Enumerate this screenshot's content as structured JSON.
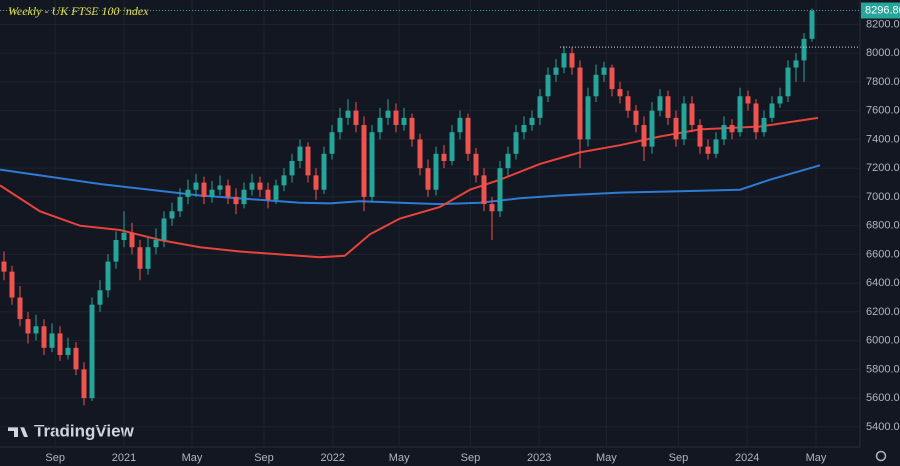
{
  "chart_data": {
    "type": "candlestick",
    "title": "Weekly - UK FTSE 100 index",
    "watermark": "TradingView",
    "up_color": "#26a69a",
    "down_color": "#ef5350",
    "grid": true,
    "ylim": [
      5260,
      8370
    ],
    "yticks": [
      {
        "value": 5400,
        "label": "5400.00"
      },
      {
        "value": 5600,
        "label": "5600.00"
      },
      {
        "value": 5800,
        "label": "5800.00"
      },
      {
        "value": 6000,
        "label": "6000.00"
      },
      {
        "value": 6200,
        "label": "6200.00"
      },
      {
        "value": 6400,
        "label": "6400.00"
      },
      {
        "value": 6600,
        "label": "6600.00"
      },
      {
        "value": 6800,
        "label": "6800.00"
      },
      {
        "value": 7000,
        "label": "7000.00"
      },
      {
        "value": 7200,
        "label": "7200.00"
      },
      {
        "value": 7400,
        "label": "7400.00"
      },
      {
        "value": 7600,
        "label": "7600.00"
      },
      {
        "value": 7800,
        "label": "7800.00"
      },
      {
        "value": 8000,
        "label": "8000.00"
      },
      {
        "value": 8200,
        "label": "8200.00"
      }
    ],
    "xlim": [
      0,
      107.5
    ],
    "xticks": [
      {
        "value": 6.9,
        "label": "Sep"
      },
      {
        "value": 15.5,
        "label": "2021"
      },
      {
        "value": 24,
        "label": "May"
      },
      {
        "value": 33,
        "label": "Sep"
      },
      {
        "value": 41.6,
        "label": "2022"
      },
      {
        "value": 49.9,
        "label": "May"
      },
      {
        "value": 58.8,
        "label": "Sep"
      },
      {
        "value": 67.4,
        "label": "2023"
      },
      {
        "value": 75.8,
        "label": "May"
      },
      {
        "value": 84.8,
        "label": "Sep"
      },
      {
        "value": 93.4,
        "label": "2024"
      },
      {
        "value": 102,
        "label": "May"
      }
    ],
    "last_price": {
      "value": 8296.8,
      "label": "8296.80"
    },
    "resistance": 8042,
    "candles": [
      [
        6550,
        6620,
        6420,
        6480
      ],
      [
        6480,
        6520,
        6250,
        6300
      ],
      [
        6300,
        6380,
        6100,
        6150
      ],
      [
        6150,
        6200,
        5980,
        6050
      ],
      [
        6050,
        6180,
        6000,
        6100
      ],
      [
        6100,
        6150,
        5900,
        5950
      ],
      [
        5950,
        6120,
        5920,
        6050
      ],
      [
        6050,
        6100,
        5860,
        5900
      ],
      [
        5900,
        6020,
        5870,
        5950
      ],
      [
        5950,
        5990,
        5760,
        5800
      ],
      [
        5800,
        5850,
        5550,
        5600
      ],
      [
        5600,
        6300,
        5580,
        6250
      ],
      [
        6250,
        6420,
        6200,
        6350
      ],
      [
        6350,
        6600,
        6300,
        6550
      ],
      [
        6550,
        6760,
        6500,
        6700
      ],
      [
        6700,
        6900,
        6650,
        6750
      ],
      [
        6750,
        6820,
        6600,
        6650
      ],
      [
        6650,
        6700,
        6420,
        6500
      ],
      [
        6500,
        6720,
        6460,
        6650
      ],
      [
        6650,
        6780,
        6600,
        6700
      ],
      [
        6700,
        6900,
        6650,
        6850
      ],
      [
        6850,
        6960,
        6800,
        6900
      ],
      [
        6900,
        7060,
        6860,
        7000
      ],
      [
        7000,
        7120,
        6950,
        7050
      ],
      [
        7050,
        7160,
        7000,
        7100
      ],
      [
        7100,
        7140,
        6950,
        7000
      ],
      [
        7000,
        7110,
        6960,
        7050
      ],
      [
        7050,
        7150,
        7010,
        7080
      ],
      [
        7080,
        7120,
        6950,
        7000
      ],
      [
        7000,
        7060,
        6880,
        6950
      ],
      [
        6950,
        7100,
        6920,
        7050
      ],
      [
        7050,
        7160,
        7010,
        7100
      ],
      [
        7100,
        7140,
        7000,
        7050
      ],
      [
        7050,
        7100,
        6920,
        6980
      ],
      [
        6980,
        7120,
        6950,
        7080
      ],
      [
        7080,
        7200,
        7040,
        7150
      ],
      [
        7150,
        7300,
        7100,
        7250
      ],
      [
        7250,
        7400,
        7200,
        7350
      ],
      [
        7350,
        7380,
        7100,
        7150
      ],
      [
        7150,
        7200,
        6980,
        7050
      ],
      [
        7050,
        7350,
        7020,
        7300
      ],
      [
        7300,
        7500,
        7260,
        7450
      ],
      [
        7450,
        7620,
        7400,
        7550
      ],
      [
        7550,
        7680,
        7500,
        7600
      ],
      [
        7600,
        7660,
        7450,
        7500
      ],
      [
        7500,
        7560,
        6900,
        7000
      ],
      [
        7000,
        7500,
        6960,
        7450
      ],
      [
        7450,
        7620,
        7400,
        7550
      ],
      [
        7550,
        7680,
        7500,
        7600
      ],
      [
        7600,
        7650,
        7450,
        7500
      ],
      [
        7500,
        7620,
        7460,
        7550
      ],
      [
        7550,
        7580,
        7350,
        7400
      ],
      [
        7400,
        7440,
        7150,
        7200
      ],
      [
        7200,
        7260,
        7000,
        7050
      ],
      [
        7050,
        7350,
        7010,
        7300
      ],
      [
        7300,
        7360,
        7200,
        7250
      ],
      [
        7250,
        7500,
        7220,
        7450
      ],
      [
        7450,
        7600,
        7400,
        7550
      ],
      [
        7550,
        7580,
        7250,
        7300
      ],
      [
        7300,
        7340,
        7100,
        7150
      ],
      [
        7150,
        7200,
        6900,
        6950
      ],
      [
        6950,
        7000,
        6700,
        6900
      ],
      [
        6900,
        7250,
        6860,
        7200
      ],
      [
        7200,
        7350,
        7150,
        7300
      ],
      [
        7300,
        7500,
        7260,
        7450
      ],
      [
        7450,
        7560,
        7400,
        7500
      ],
      [
        7500,
        7600,
        7460,
        7550
      ],
      [
        7550,
        7750,
        7500,
        7700
      ],
      [
        7700,
        7900,
        7660,
        7850
      ],
      [
        7850,
        7960,
        7800,
        7900
      ],
      [
        7900,
        8050,
        7860,
        8000
      ],
      [
        8000,
        8040,
        7850,
        7900
      ],
      [
        7900,
        7950,
        7200,
        7400
      ],
      [
        7400,
        7760,
        7350,
        7700
      ],
      [
        7700,
        7920,
        7660,
        7850
      ],
      [
        7850,
        7940,
        7800,
        7900
      ],
      [
        7900,
        7920,
        7700,
        7750
      ],
      [
        7750,
        7800,
        7650,
        7700
      ],
      [
        7700,
        7740,
        7550,
        7600
      ],
      [
        7600,
        7640,
        7450,
        7500
      ],
      [
        7500,
        7560,
        7250,
        7350
      ],
      [
        7350,
        7660,
        7300,
        7600
      ],
      [
        7600,
        7750,
        7560,
        7700
      ],
      [
        7700,
        7740,
        7500,
        7550
      ],
      [
        7550,
        7600,
        7350,
        7400
      ],
      [
        7400,
        7700,
        7360,
        7650
      ],
      [
        7650,
        7700,
        7450,
        7500
      ],
      [
        7500,
        7540,
        7300,
        7350
      ],
      [
        7350,
        7400,
        7260,
        7300
      ],
      [
        7300,
        7450,
        7270,
        7400
      ],
      [
        7400,
        7560,
        7360,
        7500
      ],
      [
        7500,
        7540,
        7400,
        7450
      ],
      [
        7450,
        7760,
        7420,
        7700
      ],
      [
        7700,
        7740,
        7600,
        7650
      ],
      [
        7650,
        7680,
        7400,
        7450
      ],
      [
        7450,
        7600,
        7420,
        7550
      ],
      [
        7550,
        7700,
        7520,
        7650
      ],
      [
        7650,
        7760,
        7620,
        7700
      ],
      [
        7700,
        7950,
        7660,
        7900
      ],
      [
        7900,
        8000,
        7800,
        7950
      ],
      [
        7950,
        8140,
        7800,
        8100
      ],
      [
        8100,
        8310,
        8080,
        8296.8
      ]
    ],
    "moving_averages": [
      {
        "color": "#2e7bd6",
        "x": [
          0,
          12.5,
          25,
          37.5,
          41.25,
          45,
          50,
          55,
          60,
          65,
          70,
          77.5,
          85,
          92.5,
          96.25,
          102.5
        ],
        "values": [
          7190,
          7090,
          7010,
          6960,
          6955,
          6970,
          6960,
          6950,
          6960,
          6990,
          7010,
          7030,
          7040,
          7050,
          7120,
          7220
        ]
      },
      {
        "color": "#e8433d",
        "x": [
          0,
          5,
          10,
          15,
          20,
          25,
          30,
          35,
          40,
          43.1,
          46.25,
          50,
          55,
          58.75,
          62.5,
          67.5,
          72.5,
          77.5,
          82.5,
          87.5,
          95,
          102.25
        ],
        "values": [
          7080,
          6900,
          6800,
          6770,
          6700,
          6650,
          6620,
          6600,
          6580,
          6590,
          6740,
          6850,
          6930,
          7050,
          7120,
          7230,
          7310,
          7360,
          7420,
          7470,
          7490,
          7550
        ]
      }
    ]
  }
}
